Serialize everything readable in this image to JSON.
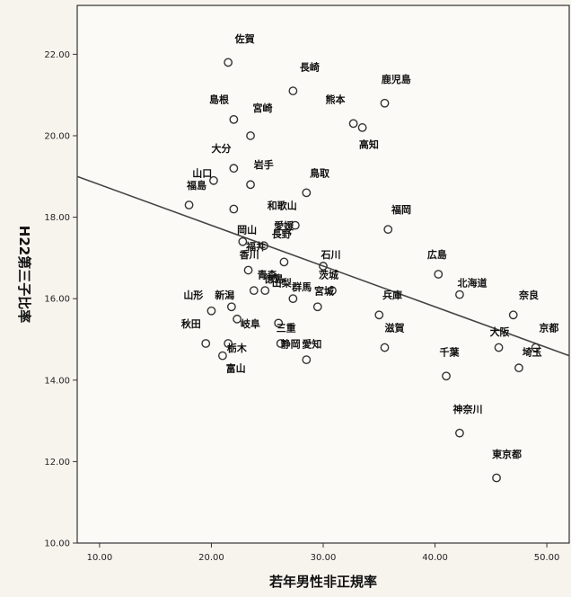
{
  "chart_data": {
    "type": "scatter",
    "title": "",
    "xlabel": "若年男性非正規率",
    "ylabel": "H22第三子比率",
    "xlim": [
      8,
      52
    ],
    "ylim": [
      10,
      23.2
    ],
    "x_ticks": [
      "10.00",
      "20.00",
      "30.00",
      "40.00",
      "50.00"
    ],
    "y_ticks": [
      "10.00",
      "12.00",
      "14.00",
      "16.00",
      "18.00",
      "20.00",
      "22.00"
    ],
    "grid": false,
    "fit_line": {
      "x": [
        8,
        52
      ],
      "y": [
        19.0,
        14.6
      ]
    },
    "points": [
      {
        "label": "佐賀",
        "x": 21.5,
        "y": 21.8
      },
      {
        "label": "長崎",
        "x": 27.3,
        "y": 21.1
      },
      {
        "label": "鹿児島",
        "x": 35.5,
        "y": 20.8
      },
      {
        "label": "島根",
        "x": 22.0,
        "y": 20.4
      },
      {
        "label": "熊本",
        "x": 32.7,
        "y": 20.3
      },
      {
        "label": "宮崎",
        "x": 23.5,
        "y": 20.0
      },
      {
        "label": "高知",
        "x": 33.5,
        "y": 20.2
      },
      {
        "label": "大分",
        "x": 22.0,
        "y": 19.2
      },
      {
        "label": "山口",
        "x": 20.2,
        "y": 18.9
      },
      {
        "label": "岩手",
        "x": 23.5,
        "y": 18.8
      },
      {
        "label": "鳥取",
        "x": 28.5,
        "y": 18.6
      },
      {
        "label": "福島",
        "x": 18.0,
        "y": 18.3
      },
      {
        "label": "岡山",
        "x": 22.0,
        "y": 18.2
      },
      {
        "label": "和歌山",
        "x": 27.5,
        "y": 17.8
      },
      {
        "label": "福岡",
        "x": 35.8,
        "y": 17.7
      },
      {
        "label": "福井",
        "x": 22.8,
        "y": 17.4
      },
      {
        "label": "愛媛",
        "x": 24.7,
        "y": 17.3
      },
      {
        "label": "長野",
        "x": 26.5,
        "y": 16.9
      },
      {
        "label": "香川",
        "x": 23.3,
        "y": 16.7
      },
      {
        "label": "石川",
        "x": 30.0,
        "y": 16.8
      },
      {
        "label": "山梨",
        "x": 25.7,
        "y": 16.5
      },
      {
        "label": "広島",
        "x": 40.3,
        "y": 16.6
      },
      {
        "label": "北海道",
        "x": 42.2,
        "y": 16.1
      },
      {
        "label": "茨城",
        "x": 30.8,
        "y": 16.2
      },
      {
        "label": "青森",
        "x": 23.8,
        "y": 16.2
      },
      {
        "label": "徳島",
        "x": 24.8,
        "y": 16.2
      },
      {
        "label": "群馬",
        "x": 27.3,
        "y": 16.0
      },
      {
        "label": "新潟",
        "x": 21.8,
        "y": 15.8
      },
      {
        "label": "山形",
        "x": 20.0,
        "y": 15.7
      },
      {
        "label": "岐阜",
        "x": 22.3,
        "y": 15.5
      },
      {
        "label": "兵庫",
        "x": 35.0,
        "y": 15.6
      },
      {
        "label": "奈良",
        "x": 47.0,
        "y": 15.6
      },
      {
        "label": "三重",
        "x": 26.0,
        "y": 15.4
      },
      {
        "label": "宮城",
        "x": 29.5,
        "y": 15.8
      },
      {
        "label": "秋田",
        "x": 19.5,
        "y": 14.9
      },
      {
        "label": "栃木",
        "x": 21.5,
        "y": 14.9
      },
      {
        "label": "静岡",
        "x": 26.2,
        "y": 14.9
      },
      {
        "label": "滋賀",
        "x": 35.5,
        "y": 14.8
      },
      {
        "label": "大阪",
        "x": 45.7,
        "y": 14.8
      },
      {
        "label": "京都",
        "x": 49.0,
        "y": 14.8
      },
      {
        "label": "愛知",
        "x": 28.5,
        "y": 14.5
      },
      {
        "label": "富山",
        "x": 21.0,
        "y": 14.6
      },
      {
        "label": "埼玉",
        "x": 47.5,
        "y": 14.3
      },
      {
        "label": "千葉",
        "x": 41.0,
        "y": 14.1
      },
      {
        "label": "神奈川",
        "x": 42.2,
        "y": 12.7
      },
      {
        "label": "東京都",
        "x": 45.5,
        "y": 11.6
      }
    ],
    "label_dx": [
      0.6,
      0.6,
      -0.3,
      -2.2,
      -2.5,
      0.2,
      -0.3,
      -2.0,
      -1.9,
      0.3,
      0.3,
      -0.2,
      0.3,
      -2.5,
      0.3,
      0.3,
      0.9,
      -1.1,
      -0.8,
      -0.2,
      -0.3,
      -1.0,
      -0.2,
      -1.2,
      0.3,
      -0.1,
      -0.1,
      -1.5,
      -2.5,
      0.3,
      0.3,
      0.5,
      -0.2,
      -0.3,
      -2.2,
      -0.1,
      0.0,
      0.0,
      -0.8,
      0.3,
      -0.4,
      0.3,
      0.3,
      -0.6,
      -0.6,
      -0.4
    ],
    "label_dy": [
      0.5,
      0.5,
      0.5,
      0.4,
      0.5,
      0.6,
      -0.5,
      0.4,
      0.1,
      0.4,
      0.4,
      0.4,
      -0.6,
      0.4,
      0.4,
      -0.2,
      0.4,
      0.6,
      0.3,
      0.2,
      -0.2,
      0.4,
      0.2,
      0.3,
      0.3,
      0.2,
      0.2,
      0.2,
      0.3,
      -0.2,
      0.4,
      0.4,
      -0.2,
      0.3,
      0.4,
      -0.2,
      -0.1,
      0.4,
      0.3,
      0.4,
      0.3,
      -0.4,
      0.3,
      0.5,
      0.5,
      0.5
    ]
  }
}
